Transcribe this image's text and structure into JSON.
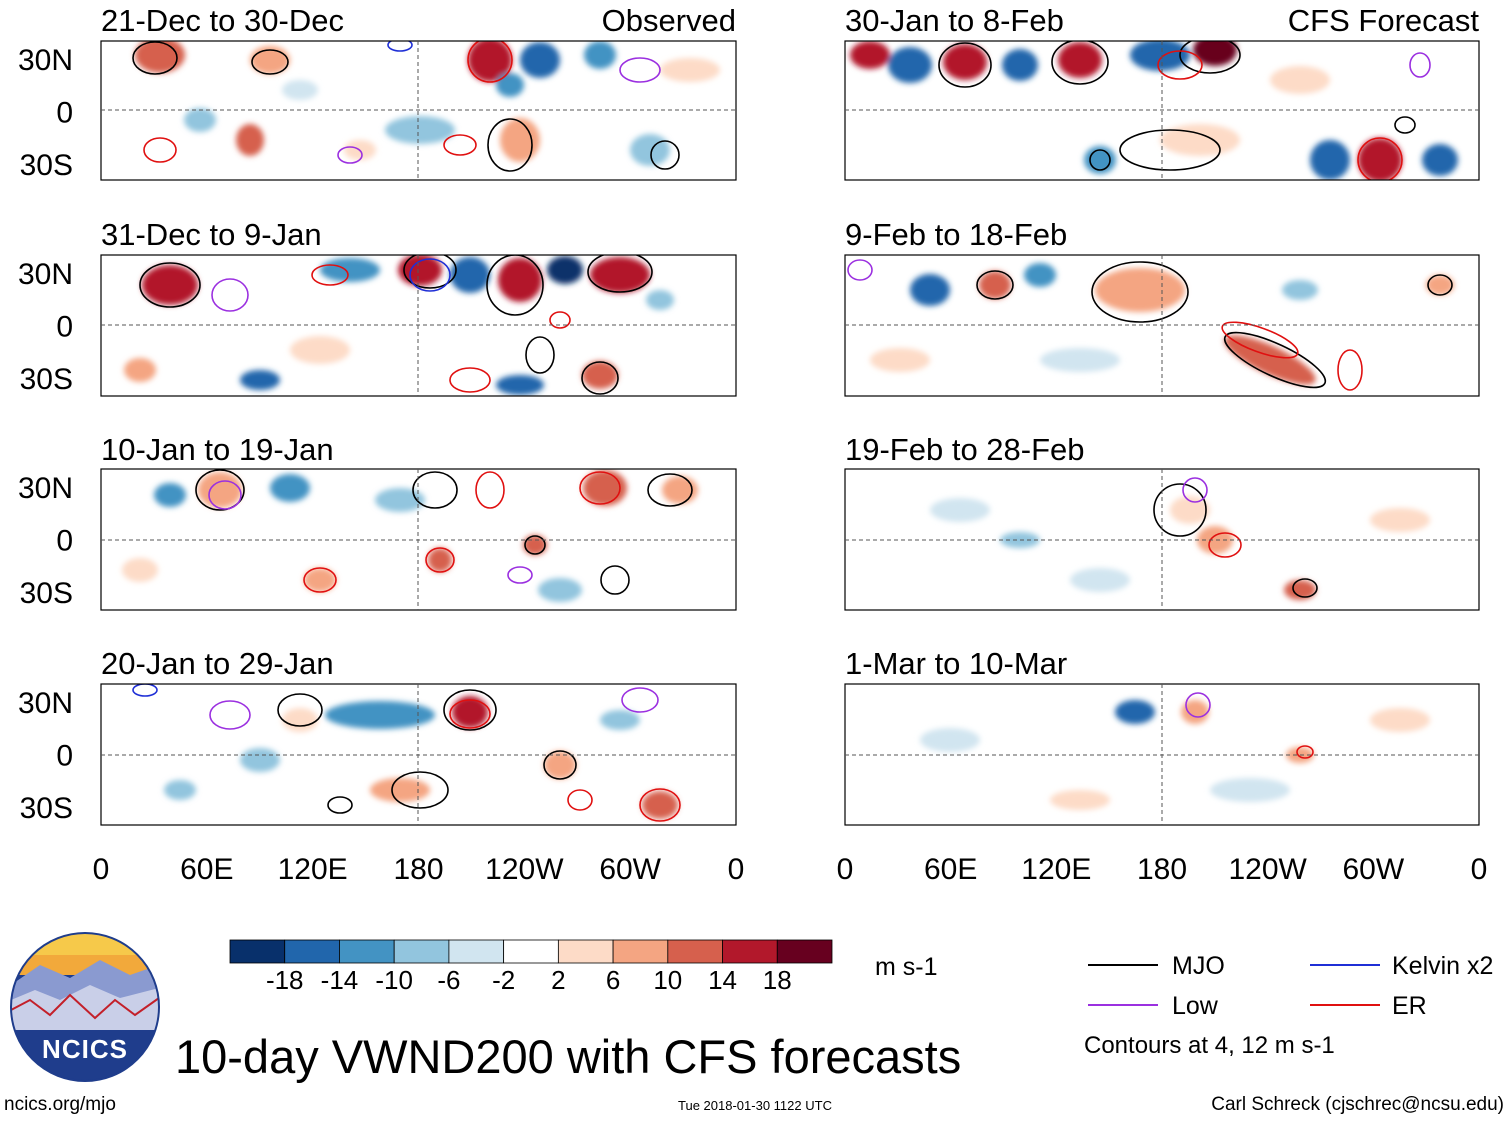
{
  "chart_data": {
    "type": "heatmap",
    "title": "10-day VWND200 with CFS forecasts",
    "variable_units": "m s-1",
    "x_ticks": [
      "0",
      "60E",
      "120E",
      "180",
      "120W",
      "60W",
      "0"
    ],
    "y_ticks": [
      "30N",
      "0",
      "30S"
    ],
    "colorbar": {
      "tick_labels": [
        "-18",
        "-14",
        "-10",
        "-6",
        "-2",
        "2",
        "6",
        "10",
        "14",
        "18"
      ],
      "colors": [
        "#08306b",
        "#2166ac",
        "#4393c3",
        "#92c5de",
        "#d1e5f0",
        "#ffffff",
        "#fddbc7",
        "#f4a582",
        "#d6604d",
        "#b2182b",
        "#67001f"
      ]
    },
    "columns": [
      {
        "header": "Observed",
        "panels": [
          {
            "label": "21-Dec to 30-Dec"
          },
          {
            "label": "31-Dec to 9-Jan"
          },
          {
            "label": "10-Jan to 19-Jan"
          },
          {
            "label": "20-Jan to 29-Jan"
          }
        ]
      },
      {
        "header": "CFS Forecast",
        "panels": [
          {
            "label": "30-Jan to 8-Feb"
          },
          {
            "label": "9-Feb to 18-Feb"
          },
          {
            "label": "19-Feb to 28-Feb"
          },
          {
            "label": "1-Mar to 10-Mar"
          }
        ]
      }
    ],
    "legend": {
      "entries": [
        {
          "name": "MJO",
          "color": "#000000"
        },
        {
          "name": "Kelvin x2",
          "color": "#1f2fd6"
        },
        {
          "name": "Low",
          "color": "#9b30e0"
        },
        {
          "name": "ER",
          "color": "#e01010"
        }
      ],
      "note": "Contours at 4, 12 m s-1"
    }
  },
  "footer": {
    "logo_text": "NCICS",
    "url": "ncics.org/mjo",
    "timestamp": "Tue 2018-01-30 1122 UTC",
    "credit": "Carl Schreck (cjschrec@ncsu.edu)"
  }
}
